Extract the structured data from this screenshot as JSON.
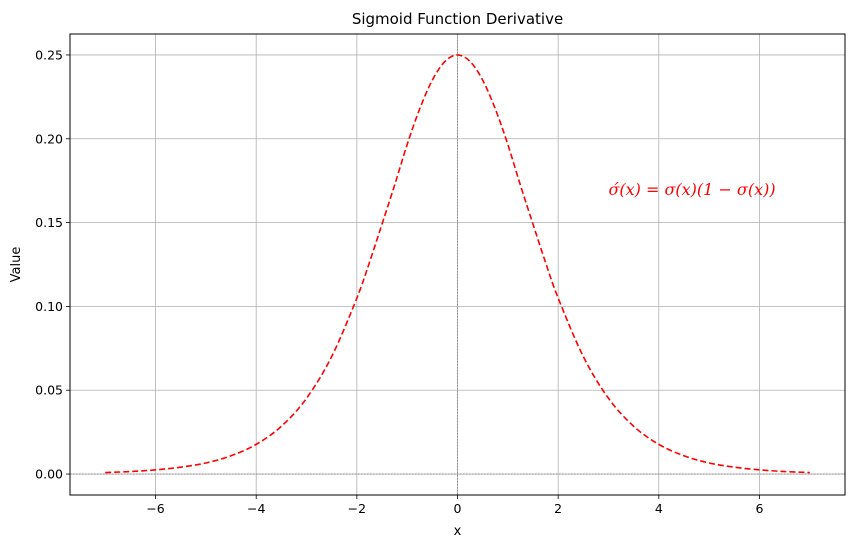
{
  "chart_data": {
    "type": "line",
    "title": "Sigmoid Function Derivative",
    "xlabel": "x",
    "ylabel": "Value",
    "xlim": [
      -7.7,
      7.7
    ],
    "ylim": [
      -0.0125,
      0.2625
    ],
    "x_ticks": [
      -6,
      -4,
      -2,
      0,
      2,
      4,
      6
    ],
    "x_tick_labels": [
      "−6",
      "−4",
      "−2",
      "0",
      "2",
      "4",
      "6"
    ],
    "y_ticks": [
      0.0,
      0.05,
      0.1,
      0.15,
      0.2,
      0.25
    ],
    "y_tick_labels": [
      "0.00",
      "0.05",
      "0.10",
      "0.15",
      "0.20",
      "0.25"
    ],
    "grid": true,
    "reference_lines": {
      "x": 0,
      "y": 0
    },
    "series": [
      {
        "line_style": "dashed",
        "color": "#ff0000",
        "x": [
          -7.0,
          -6.5,
          -6.0,
          -5.5,
          -5.0,
          -4.5,
          -4.0,
          -3.5,
          -3.0,
          -2.5,
          -2.0,
          -1.75,
          -1.5,
          -1.25,
          -1.0,
          -0.75,
          -0.5,
          -0.25,
          0.0,
          0.25,
          0.5,
          0.75,
          1.0,
          1.25,
          1.5,
          1.75,
          2.0,
          2.5,
          3.0,
          3.5,
          4.0,
          4.5,
          5.0,
          5.5,
          6.0,
          6.5,
          7.0
        ],
        "values": [
          0.0009,
          0.0015,
          0.0025,
          0.0041,
          0.0066,
          0.0109,
          0.0177,
          0.0285,
          0.0452,
          0.0701,
          0.105,
          0.1262,
          0.1491,
          0.1723,
          0.1966,
          0.2179,
          0.235,
          0.2461,
          0.25,
          0.2461,
          0.235,
          0.2179,
          0.1966,
          0.1723,
          0.1491,
          0.1262,
          0.105,
          0.0701,
          0.0452,
          0.0285,
          0.0177,
          0.0109,
          0.0066,
          0.0041,
          0.0025,
          0.0015,
          0.0009
        ]
      }
    ],
    "annotation": {
      "text": "σ́(x) = σ(x)(1 − σ(x))",
      "x": 3.0,
      "y": 0.17,
      "color": "#ff0000"
    }
  }
}
